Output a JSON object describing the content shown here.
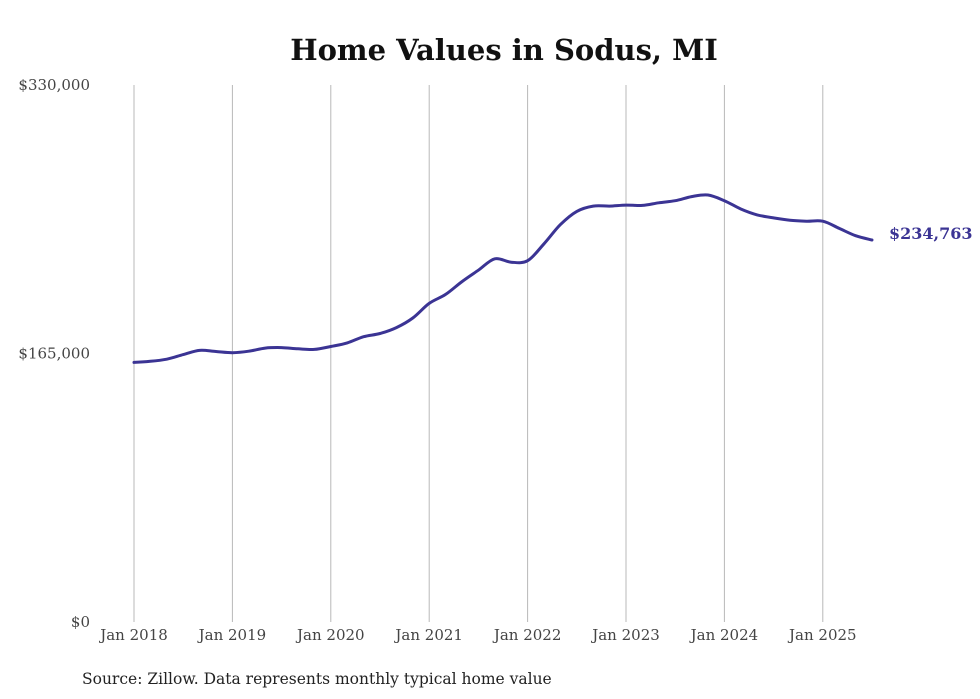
{
  "chart_data": {
    "type": "line",
    "title": "Home Values in Sodus, MI",
    "xlabel": "",
    "ylabel": "",
    "ylim": [
      0,
      330000
    ],
    "y_tick_labels": [
      "$330,000",
      "$165,000",
      "$0"
    ],
    "y_tick_values": [
      330000,
      165000,
      0
    ],
    "x_tick_labels": [
      "Jan 2018",
      "Jan 2019",
      "Jan 2020",
      "Jan 2021",
      "Jan 2022",
      "Jan 2023",
      "Jan 2024",
      "Jan 2025"
    ],
    "x_tick_values": [
      2018,
      2019,
      2020,
      2021,
      2022,
      2023,
      2024,
      2025
    ],
    "x_range": [
      2018,
      2025.5
    ],
    "grid": "vertical lines at each January",
    "line_color": "#3b3494",
    "series": [
      {
        "x": [
          "2018-01",
          "2018-03",
          "2018-05",
          "2018-07",
          "2018-09",
          "2018-11",
          "2019-01",
          "2019-03",
          "2019-05",
          "2019-07",
          "2019-09",
          "2019-11",
          "2020-01",
          "2020-03",
          "2020-05",
          "2020-07",
          "2020-09",
          "2020-11",
          "2021-01",
          "2021-03",
          "2021-05",
          "2021-07",
          "2021-09",
          "2021-11",
          "2022-01",
          "2022-03",
          "2022-05",
          "2022-07",
          "2022-09",
          "2022-11",
          "2023-01",
          "2023-03",
          "2023-05",
          "2023-07",
          "2023-09",
          "2023-11",
          "2024-01",
          "2024-03",
          "2024-05",
          "2024-07",
          "2024-09",
          "2024-11",
          "2025-01",
          "2025-03",
          "2025-05",
          "2025-07"
        ],
        "values": [
          159500,
          160200,
          161500,
          164300,
          166900,
          166200,
          165500,
          166400,
          168300,
          168600,
          167900,
          167500,
          169300,
          171500,
          175300,
          177300,
          180900,
          186800,
          195800,
          201300,
          209200,
          216200,
          223200,
          221100,
          222000,
          232400,
          244200,
          252300,
          255600,
          255600,
          256200,
          256000,
          257600,
          258900,
          261400,
          262400,
          258900,
          253800,
          250200,
          248300,
          246900,
          246300,
          246300,
          241900,
          237400,
          234763
        ]
      }
    ],
    "end_label": "$234,763",
    "source_note": "Source: Zillow. Data represents monthly typical home value"
  }
}
